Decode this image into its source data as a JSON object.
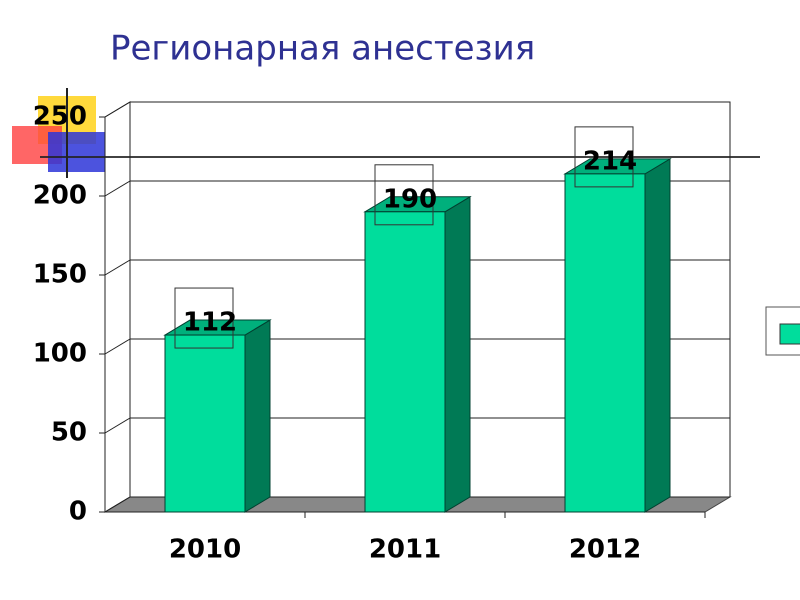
{
  "chart_data": {
    "type": "bar3d",
    "title": "Регионарная анестезия",
    "categories": [
      "2010",
      "2011",
      "2012"
    ],
    "values": [
      112,
      190,
      214
    ],
    "color": "#00dd9c",
    "ylim": [
      0,
      250
    ],
    "yticks": [
      0,
      50,
      100,
      150,
      200,
      250
    ],
    "grid": true
  }
}
